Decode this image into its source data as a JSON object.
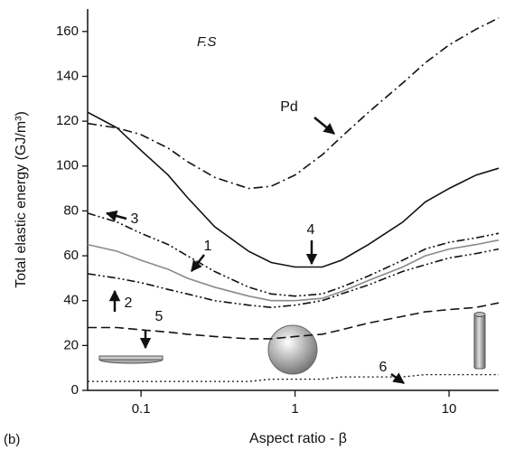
{
  "chart_data": {
    "type": "line",
    "title": "F.S",
    "panel_label": "(b)",
    "x_label": "Aspect ratio - β",
    "y_label": "Total elastic energy (GJ/m³)",
    "log_x": true,
    "xlim": [
      0.045,
      21
    ],
    "xticks": [
      0.1,
      1,
      10
    ],
    "ylim": [
      0,
      170
    ],
    "yticks": [
      0,
      20,
      40,
      60,
      80,
      100,
      120,
      140,
      160
    ],
    "x": [
      0.045,
      0.07,
      0.1,
      0.15,
      0.2,
      0.3,
      0.5,
      0.7,
      1,
      1.5,
      2,
      3,
      5,
      7,
      10,
      15,
      21
    ],
    "series": [
      {
        "name": "Pd",
        "color": "#111111",
        "dash": "10 4 2 4",
        "values": [
          119,
          117,
          114,
          108,
          102,
          95,
          90,
          91,
          96,
          105,
          113,
          124,
          137,
          146,
          154,
          161,
          166
        ]
      },
      {
        "name": "1",
        "color": "#8a8a8a",
        "dash": "none",
        "values": [
          65,
          62,
          58,
          54,
          50,
          46,
          42,
          40,
          40,
          41,
          44,
          49,
          55,
          60,
          63,
          65,
          67
        ]
      },
      {
        "name": "2",
        "color": "#111111",
        "dash": "9 3 2 3 2 3",
        "values": [
          52,
          50,
          48,
          45,
          43,
          40,
          38,
          37,
          38,
          40,
          43,
          47,
          53,
          56,
          59,
          61,
          63
        ]
      },
      {
        "name": "3",
        "color": "#111111",
        "dash": "9 3 2 3 2 3",
        "values": [
          79,
          75,
          70,
          65,
          60,
          53,
          46,
          43,
          42,
          43,
          46,
          51,
          58,
          63,
          66,
          68,
          70
        ]
      },
      {
        "name": "4",
        "color": "#111111",
        "dash": "none",
        "values": [
          124,
          117,
          107,
          96,
          86,
          73,
          62,
          57,
          55,
          55,
          58,
          65,
          75,
          84,
          90,
          96,
          99
        ]
      },
      {
        "name": "5",
        "color": "#111111",
        "dash": "10 5",
        "values": [
          28,
          28,
          27,
          26,
          25,
          24,
          23,
          23,
          24,
          25,
          27,
          30,
          33,
          35,
          36,
          37,
          39
        ]
      },
      {
        "name": "6",
        "color": "#111111",
        "dash": "2 3",
        "values": [
          4,
          4,
          4,
          4,
          4,
          4,
          4,
          5,
          5,
          5,
          6,
          6,
          6,
          7,
          7,
          7,
          7
        ]
      }
    ]
  }
}
